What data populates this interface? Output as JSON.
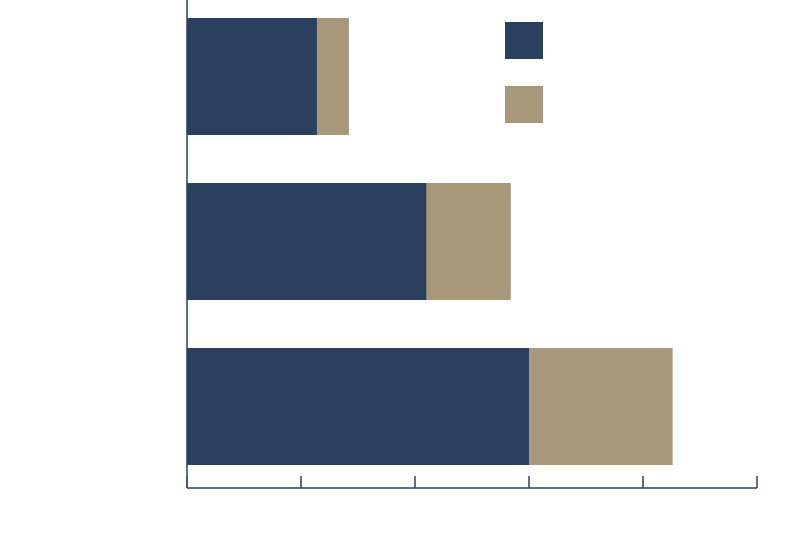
{
  "chart_data": {
    "type": "bar",
    "orientation": "horizontal",
    "stacked": true,
    "categories": [
      "",
      "",
      ""
    ],
    "series": [
      {
        "values": [
          11.4,
          21.0,
          30.0
        ]
      },
      {
        "values": [
          2.8,
          7.4,
          12.6
        ]
      }
    ],
    "xlim": [
      0,
      50
    ],
    "x_ticks": [
      0,
      10,
      20,
      30,
      40,
      50
    ],
    "grid": false,
    "legend": "top-right",
    "colors": [
      "#293f5d",
      "#a9977a"
    ]
  }
}
